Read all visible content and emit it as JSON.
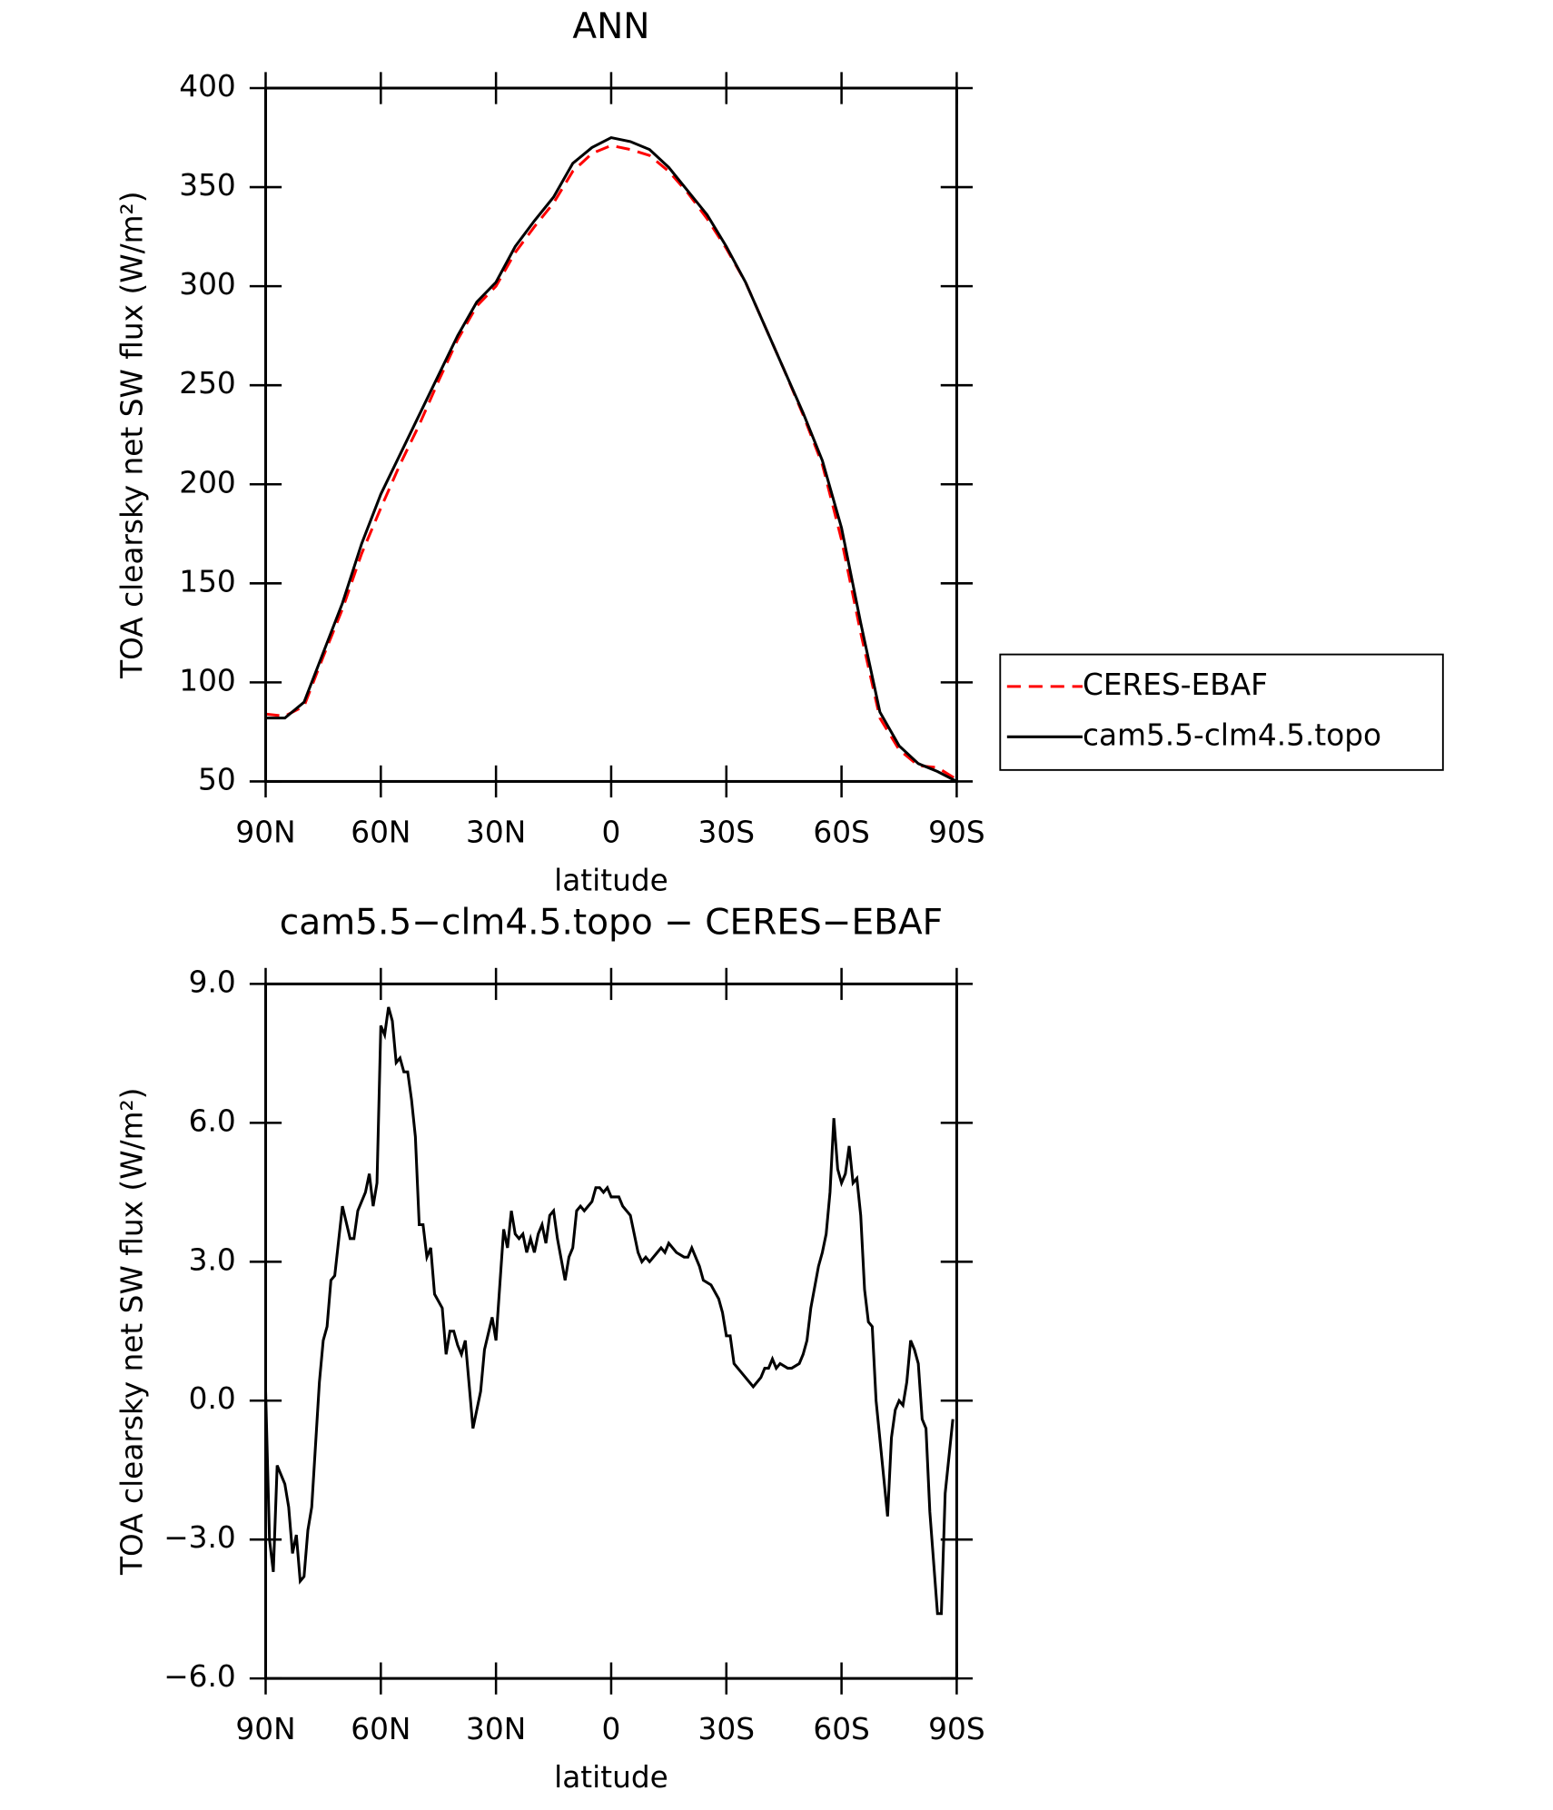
{
  "chart_data": [
    {
      "type": "line",
      "title": "ANN",
      "xlabel": "latitude",
      "ylabel": "TOA clearsky net SW flux (W/m²)",
      "x": [
        90,
        85,
        80,
        75,
        70,
        65,
        60,
        55,
        50,
        45,
        40,
        35,
        30,
        25,
        20,
        15,
        10,
        5,
        0,
        -5,
        -10,
        -15,
        -20,
        -25,
        -30,
        -35,
        -40,
        -45,
        -50,
        -55,
        -60,
        -65,
        -70,
        -75,
        -80,
        -85,
        -90
      ],
      "series": [
        {
          "name": "CERES-EBAF",
          "color": "#ff0000",
          "dashed": true,
          "values": [
            84,
            83,
            88,
            113,
            137,
            165,
            188,
            210,
            230,
            252,
            273,
            290,
            300,
            317,
            330,
            342,
            358,
            367,
            371,
            369,
            366,
            358,
            347,
            334,
            319,
            302,
            280,
            258,
            235,
            210,
            172,
            125,
            82,
            66,
            58,
            57,
            51
          ]
        },
        {
          "name": "cam5.5-clm4.5.topo",
          "color": "#000000",
          "dashed": false,
          "values": [
            82,
            82,
            90,
            115,
            140,
            170,
            195,
            215,
            235,
            255,
            275,
            292,
            302,
            320,
            333,
            345,
            362,
            370,
            375,
            373,
            369,
            360,
            348,
            336,
            320,
            302,
            280,
            258,
            236,
            212,
            178,
            130,
            85,
            68,
            59,
            55,
            50
          ]
        }
      ],
      "xlim": [
        90,
        -90
      ],
      "xticks": [
        {
          "value": 90,
          "label": "90N"
        },
        {
          "value": 60,
          "label": "60N"
        },
        {
          "value": 30,
          "label": "30N"
        },
        0,
        {
          "value": -30,
          "label": "30S"
        },
        {
          "value": -60,
          "label": "60S"
        },
        {
          "value": -90,
          "label": "90S"
        }
      ],
      "ylim": [
        50,
        400
      ],
      "yticks": [
        50,
        100,
        150,
        200,
        250,
        300,
        350,
        400
      ],
      "legend": "right"
    },
    {
      "type": "line",
      "title": "cam5.5−clm4.5.topo − CERES−EBAF",
      "xlabel": "latitude",
      "ylabel": "TOA clearsky net SW flux (W/m²)",
      "x": [
        90,
        89,
        88,
        87,
        85,
        84,
        83,
        82,
        81,
        80,
        79,
        78,
        76,
        75,
        74,
        73,
        72,
        70,
        68,
        67,
        66,
        64,
        63,
        62,
        61,
        60,
        59,
        58,
        57,
        56,
        55,
        54,
        53,
        52,
        51,
        50,
        49,
        48,
        47,
        46,
        44,
        43,
        42,
        41,
        40,
        39,
        38,
        36,
        34,
        33,
        31,
        30,
        28,
        27,
        26,
        25,
        24,
        23,
        22,
        21,
        20,
        19,
        18,
        17,
        16,
        15,
        14,
        12,
        11,
        10,
        9,
        8,
        7,
        6,
        5,
        4,
        3,
        2,
        1,
        0,
        -2,
        -3,
        -5,
        -7,
        -8,
        -9,
        -10,
        -12,
        -13,
        -14,
        -15,
        -17,
        -19,
        -20,
        -21,
        -23,
        -24,
        -26,
        -28,
        -29,
        -30,
        -31,
        -32,
        -34,
        -36,
        -37,
        -39,
        -40,
        -41,
        -42,
        -43,
        -44,
        -46,
        -47,
        -49,
        -50,
        -51,
        -52,
        -54,
        -55,
        -56,
        -57,
        -58,
        -59,
        -60,
        -61,
        -62,
        -63,
        -64,
        -65,
        -66,
        -67,
        -68,
        -69,
        -72,
        -73,
        -74,
        -75,
        -76,
        -77,
        -78,
        -79,
        -80,
        -81,
        -82,
        -83,
        -85,
        -86,
        -87,
        -89
      ],
      "series": [
        {
          "name": "cam5.5−clm4.5.topo − CERES−EBAF",
          "color": "#000000",
          "dashed": false,
          "values": [
            0.2,
            -3.0,
            -3.7,
            -1.4,
            -1.8,
            -2.3,
            -3.3,
            -2.9,
            -3.9,
            -3.8,
            -2.8,
            -2.3,
            0.4,
            1.3,
            1.6,
            2.6,
            2.7,
            4.2,
            3.5,
            3.5,
            4.1,
            4.5,
            4.9,
            4.2,
            4.7,
            8.1,
            7.9,
            8.5,
            8.2,
            7.3,
            7.4,
            7.1,
            7.1,
            6.5,
            5.7,
            3.8,
            3.8,
            3.1,
            3.3,
            2.3,
            2.0,
            1.0,
            1.5,
            1.5,
            1.2,
            1.0,
            1.3,
            -0.6,
            0.2,
            1.1,
            1.8,
            1.3,
            3.7,
            3.3,
            4.1,
            3.6,
            3.5,
            3.6,
            3.2,
            3.5,
            3.2,
            3.6,
            3.8,
            3.4,
            4.0,
            4.1,
            3.5,
            2.6,
            3.1,
            3.3,
            4.1,
            4.2,
            4.1,
            4.2,
            4.3,
            4.6,
            4.6,
            4.5,
            4.6,
            4.4,
            4.4,
            4.2,
            4.0,
            3.2,
            3.0,
            3.1,
            3.0,
            3.2,
            3.3,
            3.2,
            3.4,
            3.2,
            3.1,
            3.1,
            3.3,
            2.9,
            2.6,
            2.5,
            2.2,
            1.9,
            1.4,
            1.4,
            0.8,
            0.6,
            0.4,
            0.3,
            0.5,
            0.7,
            0.7,
            0.9,
            0.7,
            0.8,
            0.7,
            0.7,
            0.8,
            1.0,
            1.3,
            2.0,
            2.9,
            3.2,
            3.6,
            4.5,
            6.1,
            5.0,
            4.7,
            4.9,
            5.5,
            4.7,
            4.8,
            4.0,
            2.4,
            1.7,
            1.6,
            0.0,
            -2.5,
            -0.8,
            -0.2,
            0.0,
            -0.1,
            0.4,
            1.3,
            1.1,
            0.8,
            -0.4,
            -0.6,
            -2.4,
            -4.6,
            -4.6,
            -2.0,
            -0.4
          ]
        }
      ],
      "xlim": [
        90,
        -90
      ],
      "xticks": [
        {
          "value": 90,
          "label": "90N"
        },
        {
          "value": 60,
          "label": "60N"
        },
        {
          "value": 30,
          "label": "30N"
        },
        0,
        {
          "value": -30,
          "label": "30S"
        },
        {
          "value": -60,
          "label": "60S"
        },
        {
          "value": -90,
          "label": "90S"
        }
      ],
      "ylim": [
        -6,
        9
      ],
      "yticks": [
        {
          "value": -6,
          "label": "−6.0"
        },
        {
          "value": -3,
          "label": "−3.0"
        },
        {
          "value": 0,
          "label": "0.0"
        },
        {
          "value": 3,
          "label": "3.0"
        },
        {
          "value": 6,
          "label": "6.0"
        },
        {
          "value": 9,
          "label": "9.0"
        }
      ]
    }
  ]
}
